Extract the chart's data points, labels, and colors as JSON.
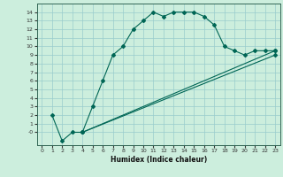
{
  "xlabel": "Humidex (Indice chaleur)",
  "bg_color": "#cceedd",
  "line_color": "#006655",
  "grid_color": "#99cccc",
  "xlim": [
    -0.5,
    23.5
  ],
  "ylim": [
    -1.5,
    15
  ],
  "xticks": [
    0,
    1,
    2,
    3,
    4,
    5,
    6,
    7,
    8,
    9,
    10,
    11,
    12,
    13,
    14,
    15,
    16,
    17,
    18,
    19,
    20,
    21,
    22,
    23
  ],
  "ytick_vals": [
    0,
    1,
    2,
    3,
    4,
    5,
    6,
    7,
    8,
    9,
    10,
    11,
    12,
    13,
    14
  ],
  "ytick_labels": [
    "-0",
    "1",
    "2",
    "3",
    "4",
    "5",
    "6",
    "7",
    "8",
    "9",
    "10",
    "11",
    "12",
    "13",
    "14"
  ],
  "line1_x": [
    1,
    2,
    3,
    4,
    5,
    6,
    7,
    8,
    9,
    10,
    11,
    12,
    13,
    14,
    15,
    16,
    17,
    18,
    19,
    20,
    21,
    22,
    23
  ],
  "line1_y": [
    2,
    -1,
    0,
    0,
    3,
    6,
    9,
    10,
    12,
    13,
    14,
    13.5,
    14,
    14,
    14,
    13.5,
    12.5,
    10,
    9.5,
    9,
    9.5,
    9.5,
    9.5
  ],
  "line2_x": [
    4,
    23
  ],
  "line2_y": [
    0,
    9.5
  ],
  "line3_x": [
    4,
    23
  ],
  "line3_y": [
    0,
    9
  ]
}
